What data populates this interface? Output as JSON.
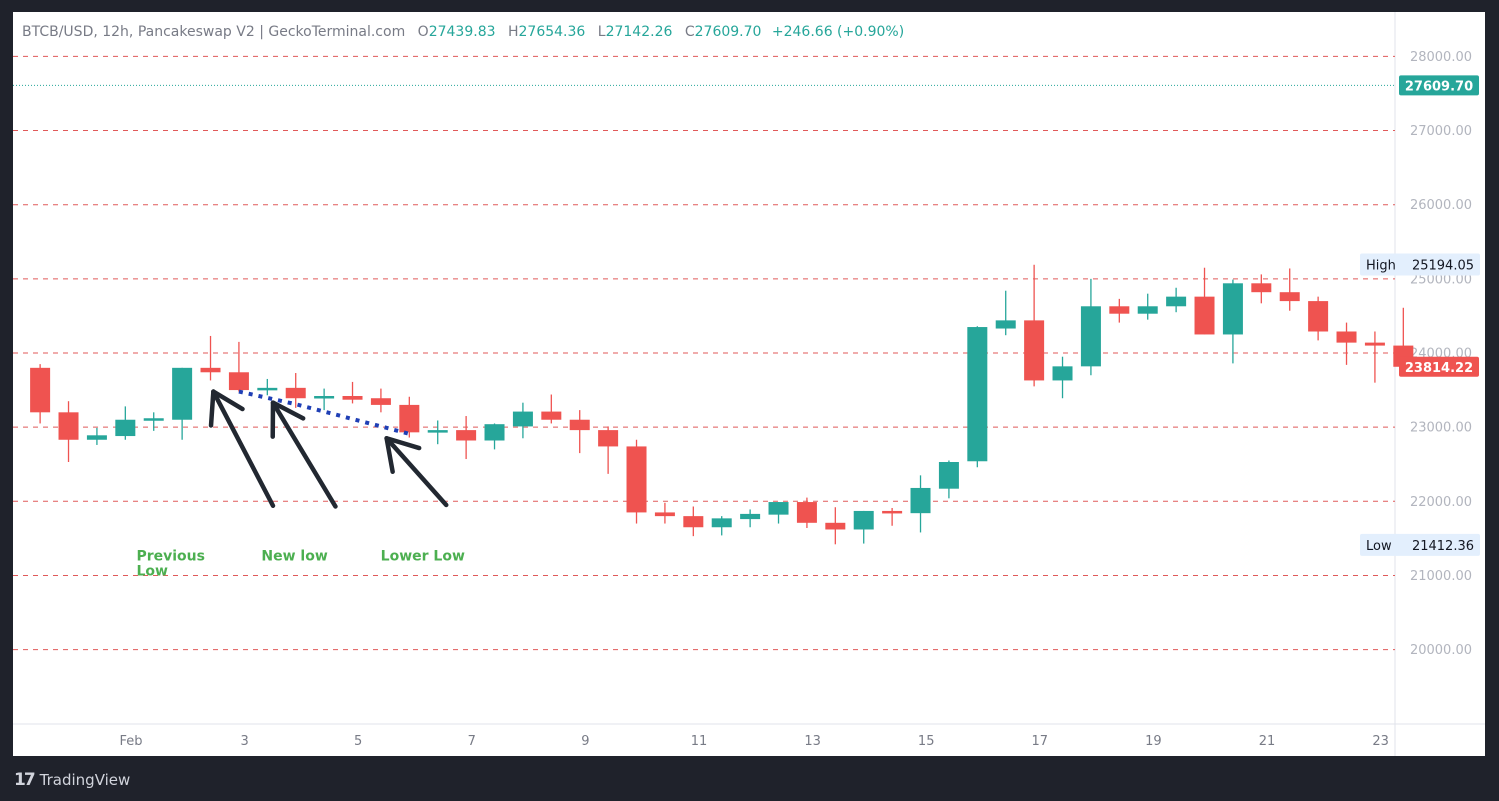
{
  "header": {
    "symbol_line": "BTCB/USD, 12h, Pancakeswap V2 | GeckoTerminal.com",
    "open_label": "O",
    "open": "27439.83",
    "high_label": "H",
    "high": "27654.36",
    "low_label": "L",
    "low": "27142.26",
    "close_label": "C",
    "close": "27609.70",
    "change": "+246.66 (+0.90%)"
  },
  "footer": {
    "brand": "TradingView"
  },
  "colors": {
    "up": "#26a69a",
    "down": "#ef5350",
    "grid": "#e05a5a",
    "annotation_text": "#4caf50",
    "arrow": "#222831",
    "trend_dots": "#1f3fb5",
    "price_line": "#26a69a"
  },
  "chart_data": {
    "type": "candlestick",
    "ylim": [
      18700,
      28500
    ],
    "y_ticks": [
      28000,
      27000,
      26000,
      25000,
      24000,
      23000,
      22000,
      21000,
      20000
    ],
    "y_tick_labels": [
      "28000.00",
      "27000.00",
      "26000.00",
      "25000.00",
      "24000.00",
      "23000.00",
      "22000.00",
      "21000.00",
      "20000.00"
    ],
    "x_ticks": [
      {
        "label": "Feb",
        "day": 1
      },
      {
        "label": "3",
        "day": 3
      },
      {
        "label": "5",
        "day": 5
      },
      {
        "label": "7",
        "day": 7
      },
      {
        "label": "9",
        "day": 9
      },
      {
        "label": "11",
        "day": 11
      },
      {
        "label": "13",
        "day": 13
      },
      {
        "label": "15",
        "day": 15
      },
      {
        "label": "17",
        "day": 17
      },
      {
        "label": "19",
        "day": 19
      },
      {
        "label": "21",
        "day": 21
      },
      {
        "label": "23",
        "day": 23
      }
    ],
    "candles": [
      {
        "day": -0.6,
        "o": 23800,
        "h": 23850,
        "l": 23050,
        "c": 23200
      },
      {
        "day": -0.1,
        "o": 23200,
        "h": 23350,
        "l": 22530,
        "c": 22830
      },
      {
        "day": 0.4,
        "o": 22830,
        "h": 22990,
        "l": 22760,
        "c": 22890
      },
      {
        "day": 0.9,
        "o": 22880,
        "h": 23280,
        "l": 22830,
        "c": 23100
      },
      {
        "day": 1.4,
        "o": 23100,
        "h": 23200,
        "l": 22950,
        "c": 23120
      },
      {
        "day": 1.9,
        "o": 23100,
        "h": 23800,
        "l": 22830,
        "c": 23800
      },
      {
        "day": 2.4,
        "o": 23800,
        "h": 24230,
        "l": 23630,
        "c": 23740
      },
      {
        "day": 2.9,
        "o": 23740,
        "h": 24150,
        "l": 23480,
        "c": 23500
      },
      {
        "day": 3.4,
        "o": 23520,
        "h": 23650,
        "l": 23430,
        "c": 23530
      },
      {
        "day": 3.9,
        "o": 23530,
        "h": 23730,
        "l": 23260,
        "c": 23390
      },
      {
        "day": 4.4,
        "o": 23390,
        "h": 23520,
        "l": 23230,
        "c": 23420
      },
      {
        "day": 4.9,
        "o": 23420,
        "h": 23610,
        "l": 23320,
        "c": 23370
      },
      {
        "day": 5.4,
        "o": 23390,
        "h": 23520,
        "l": 23200,
        "c": 23300
      },
      {
        "day": 5.9,
        "o": 23300,
        "h": 23410,
        "l": 22860,
        "c": 22930
      },
      {
        "day": 6.4,
        "o": 22930,
        "h": 23090,
        "l": 22770,
        "c": 22960
      },
      {
        "day": 6.9,
        "o": 22960,
        "h": 23150,
        "l": 22570,
        "c": 22820
      },
      {
        "day": 7.4,
        "o": 22820,
        "h": 23050,
        "l": 22700,
        "c": 23040
      },
      {
        "day": 7.9,
        "o": 23010,
        "h": 23330,
        "l": 22850,
        "c": 23210
      },
      {
        "day": 8.4,
        "o": 23210,
        "h": 23440,
        "l": 23050,
        "c": 23100
      },
      {
        "day": 8.9,
        "o": 23100,
        "h": 23230,
        "l": 22650,
        "c": 22960
      },
      {
        "day": 9.4,
        "o": 22960,
        "h": 23010,
        "l": 22370,
        "c": 22740
      },
      {
        "day": 9.9,
        "o": 22740,
        "h": 22830,
        "l": 21700,
        "c": 21850
      },
      {
        "day": 10.4,
        "o": 21850,
        "h": 21980,
        "l": 21700,
        "c": 21800
      },
      {
        "day": 10.9,
        "o": 21800,
        "h": 21930,
        "l": 21530,
        "c": 21650
      },
      {
        "day": 11.4,
        "o": 21650,
        "h": 21800,
        "l": 21540,
        "c": 21770
      },
      {
        "day": 11.9,
        "o": 21760,
        "h": 21890,
        "l": 21650,
        "c": 21830
      },
      {
        "day": 12.4,
        "o": 21820,
        "h": 21990,
        "l": 21700,
        "c": 21990
      },
      {
        "day": 12.9,
        "o": 21990,
        "h": 22050,
        "l": 21640,
        "c": 21710
      },
      {
        "day": 13.4,
        "o": 21710,
        "h": 21920,
        "l": 21420,
        "c": 21620
      },
      {
        "day": 13.9,
        "o": 21620,
        "h": 21870,
        "l": 21430,
        "c": 21870
      },
      {
        "day": 14.4,
        "o": 21870,
        "h": 21910,
        "l": 21670,
        "c": 21840
      },
      {
        "day": 14.9,
        "o": 21840,
        "h": 22350,
        "l": 21580,
        "c": 22180
      },
      {
        "day": 15.4,
        "o": 22170,
        "h": 22550,
        "l": 22040,
        "c": 22530
      },
      {
        "day": 15.9,
        "o": 22540,
        "h": 24360,
        "l": 22460,
        "c": 24350
      },
      {
        "day": 16.4,
        "o": 24330,
        "h": 24840,
        "l": 24240,
        "c": 24440
      },
      {
        "day": 16.9,
        "o": 24440,
        "h": 25190,
        "l": 23550,
        "c": 23630
      },
      {
        "day": 17.4,
        "o": 23630,
        "h": 23950,
        "l": 23390,
        "c": 23820
      },
      {
        "day": 17.9,
        "o": 23820,
        "h": 25000,
        "l": 23700,
        "c": 24630
      },
      {
        "day": 18.4,
        "o": 24630,
        "h": 24730,
        "l": 24410,
        "c": 24530
      },
      {
        "day": 18.9,
        "o": 24530,
        "h": 24800,
        "l": 24450,
        "c": 24630
      },
      {
        "day": 19.4,
        "o": 24630,
        "h": 24880,
        "l": 24550,
        "c": 24760
      },
      {
        "day": 19.9,
        "o": 24760,
        "h": 25150,
        "l": 24250,
        "c": 24250
      },
      {
        "day": 20.4,
        "o": 24250,
        "h": 24990,
        "l": 23860,
        "c": 24940
      },
      {
        "day": 20.9,
        "o": 24940,
        "h": 25060,
        "l": 24670,
        "c": 24820
      },
      {
        "day": 21.4,
        "o": 24820,
        "h": 25140,
        "l": 24570,
        "c": 24700
      },
      {
        "day": 21.9,
        "o": 24700,
        "h": 24760,
        "l": 24170,
        "c": 24290
      },
      {
        "day": 22.4,
        "o": 24290,
        "h": 24410,
        "l": 23840,
        "c": 24140
      },
      {
        "day": 22.9,
        "o": 24140,
        "h": 24290,
        "l": 23600,
        "c": 24100
      },
      {
        "day": 23.4,
        "o": 24100,
        "h": 24610,
        "l": 23700,
        "c": 23814.22
      }
    ],
    "high_marker": {
      "label": "High",
      "value": "25194.05",
      "price": 25194.05
    },
    "low_marker": {
      "label": "Low",
      "value": "21412.36",
      "price": 21412.36
    },
    "last_price_label": {
      "value": "23814.22",
      "price": 23814.22
    },
    "current_price_line": {
      "value": "27609.70",
      "price": 27609.7
    },
    "trend_line": [
      {
        "day": 2.9,
        "price": 23480
      },
      {
        "day": 3.9,
        "price": 23310
      },
      {
        "day": 5.9,
        "price": 22910
      }
    ],
    "annotations": [
      {
        "lines": [
          "Previous",
          "Low"
        ],
        "day": 1.8,
        "price": 21200,
        "arrow_from": {
          "day": 3.5,
          "price": 21940
        },
        "arrow_to": {
          "day": 2.45,
          "price": 23480
        }
      },
      {
        "lines": [
          "New low"
        ],
        "day": 4.0,
        "price": 21200,
        "arrow_from": {
          "day": 4.6,
          "price": 21930
        },
        "arrow_to": {
          "day": 3.5,
          "price": 23330
        }
      },
      {
        "lines": [
          "Lower Low"
        ],
        "day": 6.1,
        "price": 21200,
        "arrow_from": {
          "day": 6.55,
          "price": 21950
        },
        "arrow_to": {
          "day": 5.5,
          "price": 22850
        }
      }
    ]
  }
}
